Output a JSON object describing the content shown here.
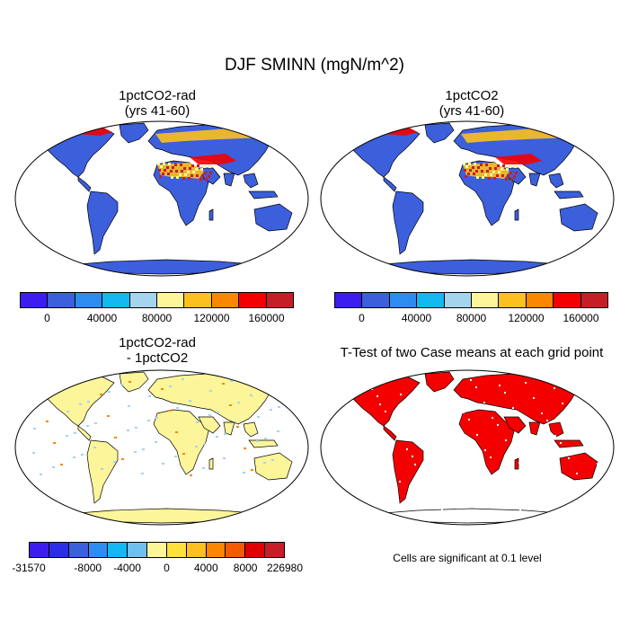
{
  "title": "DJF SMINN (mgN/m^2)",
  "panels": {
    "top_left": {
      "title_line1": "1pctCO2-rad",
      "title_line2": "(yrs 41-60)"
    },
    "top_right": {
      "title_line1": "1pctCO2",
      "title_line2": "(yrs 41-60)"
    },
    "bottom_left": {
      "title_line1": "1pctCO2-rad",
      "title_line2": "- 1pctCO2"
    },
    "bottom_right": {
      "title_line1": "T-Test of two Case means at each grid point"
    }
  },
  "colorbar_top": {
    "colors": [
      "#3d1cf0",
      "#3c5fdc",
      "#2d8cf0",
      "#12b8ef",
      "#a5d4ee",
      "#fdf59a",
      "#fcc01f",
      "#fb8700",
      "#f40000",
      "#c51e26"
    ],
    "labels": [
      "0",
      "40000",
      "80000",
      "120000",
      "160000"
    ]
  },
  "colorbar_diff": {
    "colors": [
      "#3d1cf0",
      "#2a2ee6",
      "#3c5fdc",
      "#2d8cf0",
      "#12b8ef",
      "#6ec0ee",
      "#fdf59a",
      "#fde03a",
      "#fcc01f",
      "#fb8700",
      "#f45a00",
      "#e00000",
      "#c51e26"
    ],
    "labels": [
      "-31570",
      "-8000",
      "-4000",
      "0",
      "4000",
      "8000",
      "226980"
    ]
  },
  "significance_note": "Cells are significant at 0.1 level",
  "colors": {
    "land_blue": "#3c5fdc",
    "land_pale": "#fdf59a",
    "significant_red": "#f40000",
    "ocean": "#ffffff"
  }
}
